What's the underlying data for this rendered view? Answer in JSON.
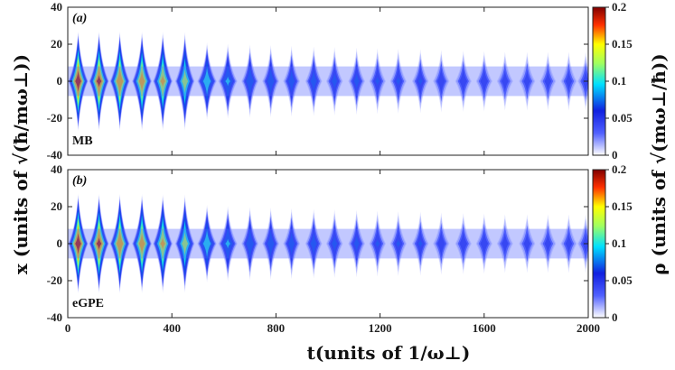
{
  "chart_data": {
    "type": "heatmap",
    "xlabel": "t(units of 1/ω⊥)",
    "ylabel": "x (units of √(ħ/mω⊥))",
    "colorbar_label": "ρ (units of √(mω⊥/ħ))",
    "xlim": [
      0,
      2000
    ],
    "ylim": [
      -40,
      40
    ],
    "clim": [
      0,
      0.2
    ],
    "x_ticks": [
      "0",
      "400",
      "800",
      "1200",
      "1600",
      "2000"
    ],
    "y_ticks": [
      "-40",
      "-20",
      "0",
      "20",
      "40"
    ],
    "colorbar_ticks": [
      "0",
      "0.05",
      "0.1",
      "0.15",
      "0.2"
    ],
    "colormap": [
      "#ffffff",
      "#1e28f0",
      "#00ffff",
      "#ffff00",
      "#ff3000",
      "#800000"
    ],
    "breathing_period": 80,
    "panels": [
      {
        "tag": "(a)",
        "model": "MB",
        "peak_times": [
          40,
          120,
          200,
          285,
          365,
          450,
          535,
          615,
          700,
          780,
          860,
          945,
          1025,
          1110,
          1190,
          1270,
          1355,
          1435,
          1520,
          1600,
          1680,
          1765,
          1845,
          1925,
          1990
        ],
        "peak_density": [
          0.2,
          0.19,
          0.18,
          0.17,
          0.16,
          0.14,
          0.12,
          0.1,
          0.09,
          0.085,
          0.08,
          0.08,
          0.075,
          0.075,
          0.07,
          0.07,
          0.07,
          0.065,
          0.065,
          0.065,
          0.06,
          0.06,
          0.06,
          0.06,
          0.06
        ]
      },
      {
        "tag": "(b)",
        "model": "eGPE",
        "peak_times": [
          40,
          120,
          200,
          285,
          365,
          450,
          535,
          615,
          700,
          780,
          860,
          945,
          1025,
          1110,
          1190,
          1270,
          1355,
          1435,
          1520,
          1600,
          1680,
          1765,
          1845,
          1925,
          1990
        ],
        "peak_density": [
          0.2,
          0.19,
          0.18,
          0.17,
          0.16,
          0.14,
          0.12,
          0.1,
          0.09,
          0.085,
          0.08,
          0.08,
          0.075,
          0.075,
          0.07,
          0.07,
          0.07,
          0.065,
          0.065,
          0.065,
          0.06,
          0.06,
          0.06,
          0.06,
          0.06
        ]
      }
    ]
  }
}
